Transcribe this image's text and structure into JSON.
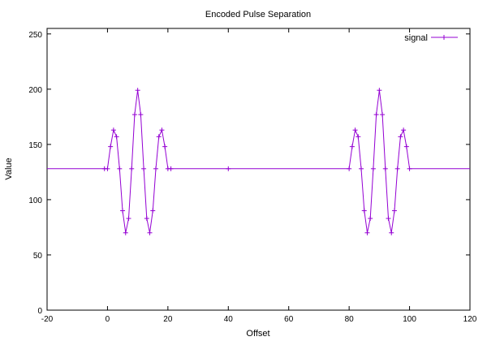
{
  "chart_data": {
    "type": "line",
    "title": "Encoded Pulse Separation",
    "xlabel": "Offset",
    "ylabel": "Value",
    "xlim": [
      -20,
      120
    ],
    "ylim": [
      0,
      255
    ],
    "xticks": [
      -20,
      0,
      20,
      40,
      60,
      80,
      100,
      120
    ],
    "yticks": [
      0,
      50,
      100,
      150,
      200,
      250
    ],
    "grid": false,
    "legend": "top-right",
    "series": [
      {
        "name": "signal",
        "color": "#9400d3",
        "marker": "plus",
        "x": [
          -20,
          -1,
          0,
          1,
          2,
          3,
          4,
          5,
          6,
          7,
          8,
          9,
          10,
          11,
          12,
          13,
          14,
          15,
          16,
          17,
          18,
          19,
          20,
          21,
          40,
          80,
          81,
          82,
          83,
          84,
          85,
          86,
          87,
          88,
          89,
          90,
          91,
          92,
          93,
          94,
          95,
          96,
          97,
          98,
          99,
          100,
          120
        ],
        "y": [
          128,
          128,
          128,
          148,
          163,
          157,
          128,
          90,
          70,
          83,
          128,
          177,
          199,
          177,
          128,
          83,
          70,
          90,
          128,
          157,
          163,
          148,
          128,
          128,
          128,
          128,
          148,
          163,
          157,
          128,
          90,
          70,
          83,
          128,
          177,
          199,
          177,
          128,
          83,
          70,
          90,
          128,
          157,
          163,
          148,
          128,
          128
        ],
        "marker_points": [
          -1,
          0,
          1,
          2,
          3,
          4,
          5,
          6,
          7,
          8,
          9,
          10,
          11,
          12,
          13,
          14,
          15,
          16,
          17,
          18,
          19,
          20,
          21,
          40,
          80,
          81,
          82,
          83,
          84,
          85,
          86,
          87,
          88,
          89,
          90,
          91,
          92,
          93,
          94,
          95,
          96,
          97,
          98,
          99,
          100
        ]
      }
    ]
  }
}
